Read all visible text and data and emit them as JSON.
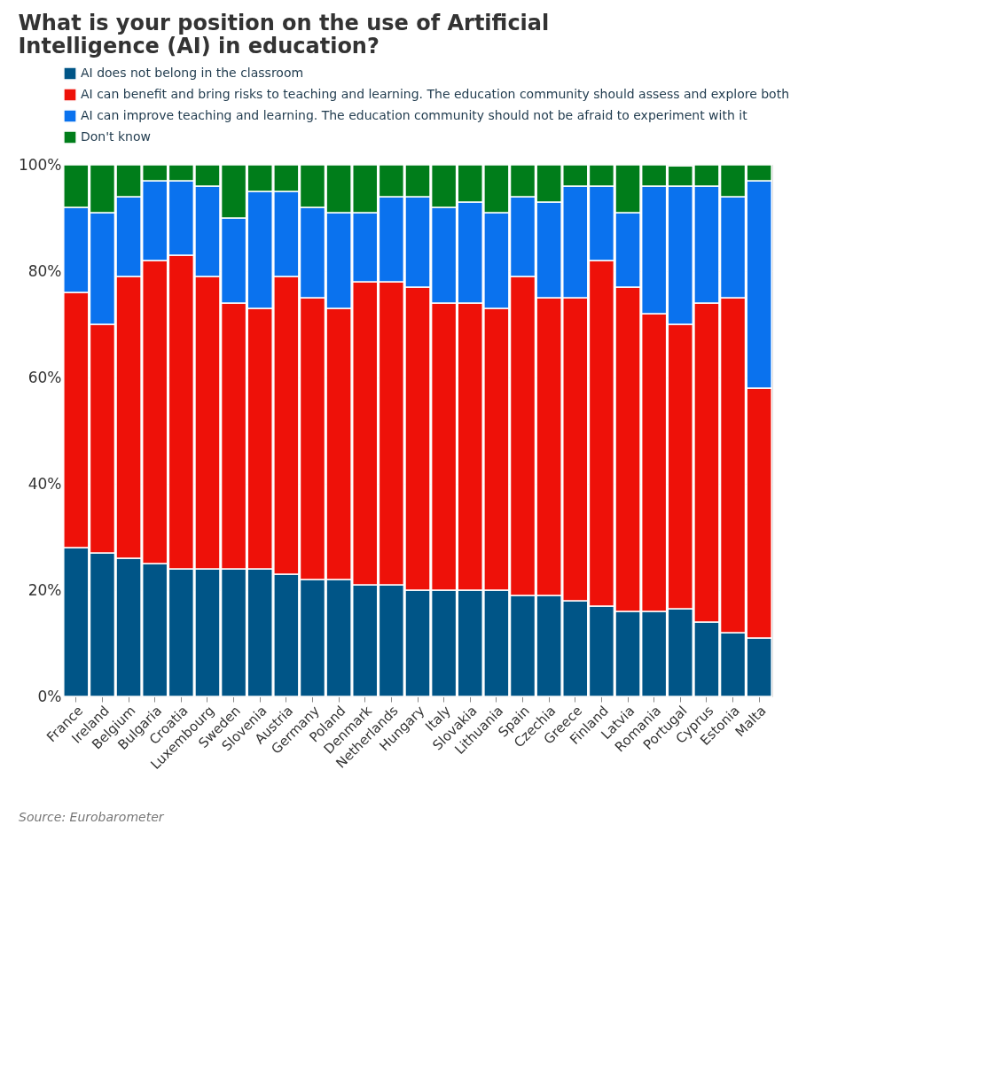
{
  "chart_data": {
    "type": "bar",
    "stacked": true,
    "title": "What is your position on the use of Artificial Intelligence (AI) in education?",
    "categories": [
      "France",
      "Ireland",
      "Belgium",
      "Bulgaria",
      "Croatia",
      "Luxembourg",
      "Sweden",
      "Slovenia",
      "Austria",
      "Germany",
      "Poland",
      "Denmark",
      "Netherlands",
      "Hungary",
      "Italy",
      "Slovakia",
      "Lithuania",
      "Spain",
      "Czechia",
      "Greece",
      "Finland",
      "Latvia",
      "Romania",
      "Portugal",
      "Cyprus",
      "Estonia",
      "Malta"
    ],
    "series": [
      {
        "name": "AI does not belong in the classroom",
        "color": "#005587",
        "values": [
          28,
          27,
          26,
          25,
          24,
          24,
          24,
          24,
          23,
          22,
          22,
          21,
          21,
          20,
          20,
          20,
          20,
          19,
          19,
          18,
          17,
          16,
          16,
          16.5,
          14,
          12,
          11
        ]
      },
      {
        "name": "AI can benefit and bring risks to teaching and learning. The education community should assess and explore both",
        "color": "#ee1109",
        "values": [
          48,
          43,
          53,
          57,
          59,
          55,
          50,
          49,
          56,
          53,
          51,
          57,
          57,
          57,
          54,
          54,
          53,
          60,
          56,
          57,
          65,
          61,
          56,
          53.5,
          60,
          63,
          47
        ]
      },
      {
        "name": "AI can improve teaching and learning. The education community should not be afraid to experiment with it",
        "color": "#0a72ee",
        "values": [
          16,
          21,
          15,
          15,
          14,
          17,
          16,
          22,
          16,
          17,
          18,
          13,
          16,
          17,
          18,
          19,
          18,
          15,
          18,
          21,
          14,
          14,
          24,
          26,
          22,
          19,
          39
        ]
      },
      {
        "name": "Don't know",
        "color": "#007d1a",
        "values": [
          8,
          9,
          6,
          3,
          3,
          4,
          10,
          5,
          5,
          8,
          9,
          9,
          6,
          6,
          8,
          7,
          9,
          6,
          7,
          4,
          4,
          9,
          4,
          3.8,
          4,
          6,
          3
        ]
      }
    ],
    "ylim": [
      0,
      100
    ],
    "yticks": [
      {
        "value": 0,
        "label": "0%"
      },
      {
        "value": 20,
        "label": "20%"
      },
      {
        "value": 40,
        "label": "40%"
      },
      {
        "value": 60,
        "label": "60%"
      },
      {
        "value": 80,
        "label": "80%"
      },
      {
        "value": 100,
        "label": "100%"
      }
    ],
    "grid": "y",
    "legend": "top left",
    "annotations": [
      "Source: Eurobarometer"
    ]
  }
}
